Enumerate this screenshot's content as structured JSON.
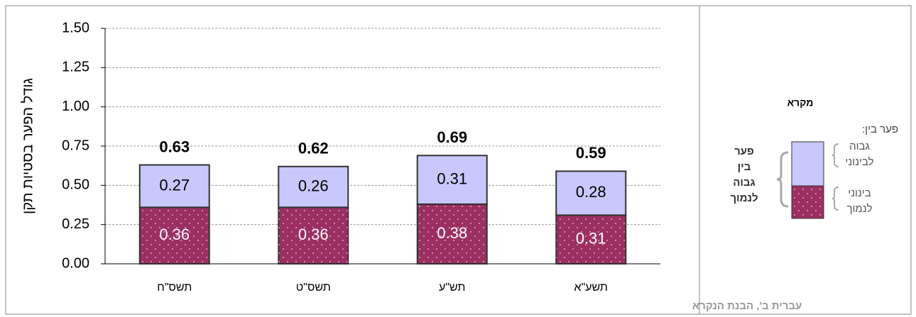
{
  "chart_data": {
    "type": "stacked_bar",
    "y_label": "גודל הפער בסטיות תקן",
    "categories": [
      "תשס\"ח",
      "תשס\"ט",
      "תש\"ע",
      "תשע\"א"
    ],
    "series": [
      {
        "name": "בינוני לנמוך",
        "color": "#9b2f62",
        "values": [
          0.36,
          0.36,
          0.38,
          0.31
        ]
      },
      {
        "name": "גבוה לבינוני",
        "color": "#c8c8ff",
        "values": [
          0.27,
          0.26,
          0.31,
          0.28
        ]
      }
    ],
    "totals": [
      0.63,
      0.62,
      0.69,
      0.59
    ],
    "ylim": [
      0,
      1.5
    ],
    "yticks": [
      {
        "value": 0,
        "label": "0.00"
      },
      {
        "value": 0.25,
        "label": "0.25"
      },
      {
        "value": 0.5,
        "label": "0.50"
      },
      {
        "value": 0.75,
        "label": "0.75"
      },
      {
        "value": 1,
        "label": "1.00"
      },
      {
        "value": 1.25,
        "label": "1.25"
      },
      {
        "value": 1.5,
        "label": "1.50"
      }
    ],
    "grid": true
  },
  "legend": {
    "title": "מקרא",
    "subtitle": "פער בין:",
    "gap_label": "פער בין גבוה לנמוך"
  },
  "footer": "עברית ב', הבנת הנקרא"
}
